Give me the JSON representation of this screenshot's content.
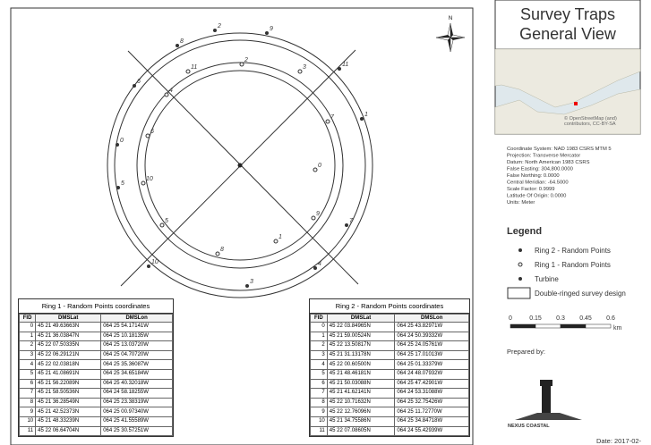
{
  "header": {
    "title_line1": "Survey Traps",
    "title_line2": "General View"
  },
  "inset": {
    "attribution": "© OpenStreetMap (and) contributors, CC-BY-SA"
  },
  "coordinate_info": [
    "Coordinate System: NAD 1983 CSRS MTM 5",
    "Projection: Transverse Mercator",
    "Datum: North American 1983 CSRS",
    "False Easting: 304,800.0000",
    "False Northing: 0.0000",
    "Central Meridian: -64.5000",
    "Scale Factor: 0.9999",
    "Latitude Of Origin: 0.0000",
    "Units: Meter"
  ],
  "legend": {
    "title": "Legend",
    "items": [
      "Ring 2 - Random Points",
      "Ring 1 - Random Points",
      "Turbine",
      "Double-ringed survey design"
    ]
  },
  "scale_bar": {
    "labels": [
      "0",
      "0.15",
      "0.3",
      "0.45",
      "0.6"
    ],
    "unit": "km"
  },
  "north": "N",
  "prepared_by": "Prepared by:",
  "logo": "NEXUS COASTAL",
  "date": "Date: 2017-02-",
  "map": {
    "ring1_labels": [
      "0",
      "1",
      "2",
      "3",
      "4",
      "5",
      "6",
      "7",
      "8",
      "9",
      "10",
      "11"
    ],
    "ring2_labels": [
      "0",
      "1",
      "2",
      "3",
      "4",
      "5",
      "6",
      "7",
      "8",
      "9",
      "10",
      "11"
    ]
  },
  "tables": [
    {
      "title": "Ring 1 - Random Points coordinates",
      "header": [
        "FID",
        "DMSLat",
        "DMSLon"
      ],
      "rows": [
        [
          "0",
          "45 21 49.63663N",
          "064 25 54.17141W"
        ],
        [
          "1",
          "45 21 36.03847N",
          "064 25 10.18135W"
        ],
        [
          "2",
          "45 22 07.50335N",
          "064 25 13.03720W"
        ],
        [
          "3",
          "45 22 06.29121N",
          "064 25 04.70720W"
        ],
        [
          "4",
          "45 22 02.03818N",
          "064 25 35.36087W"
        ],
        [
          "5",
          "45 21 41.08691N",
          "064 25 34.65184W"
        ],
        [
          "6",
          "45 21 56.22089N",
          "064 25 40.32018W"
        ],
        [
          "7",
          "45 21 58.50536N",
          "064 24 58.18255W"
        ],
        [
          "8",
          "45 21 36.28549N",
          "064 25 23.38319W"
        ],
        [
          "9",
          "45 21 42.52373N",
          "064 25 00.97340W"
        ],
        [
          "10",
          "45 21 48.33239N",
          "064 25 41.55589W"
        ],
        [
          "11",
          "45 22 06.64704N",
          "064 25 30.57251W"
        ]
      ]
    },
    {
      "title": "Ring 2 - Random Points coordinates",
      "header": [
        "FID",
        "DMSLat",
        "DMSLon"
      ],
      "rows": [
        [
          "0",
          "45 22 03.84965N",
          "064 25 43.82971W"
        ],
        [
          "1",
          "45 21 59.00524N",
          "064 24 50.39332W"
        ],
        [
          "2",
          "45 22 13.50817N",
          "064 25 24.05761W"
        ],
        [
          "3",
          "45 21 31.13178N",
          "064 25 17.01013W"
        ],
        [
          "4",
          "45 22 00.60500N",
          "064 25 01.33379W"
        ],
        [
          "5",
          "45 21 48.46181N",
          "064 24 48.07932W"
        ],
        [
          "6",
          "45 21 50.03088N",
          "064 25 47.42901W"
        ],
        [
          "7",
          "45 21 41.62141N",
          "064 24 53.31088W"
        ],
        [
          "8",
          "45 22 10.71632N",
          "064 25 32.75426W"
        ],
        [
          "9",
          "45 22 12.76096N",
          "064 25 11.72770W"
        ],
        [
          "10",
          "45 21 34.75586N",
          "064 25 34.84718W"
        ],
        [
          "11",
          "45 22 07.08605N",
          "064 24 55.42939W"
        ]
      ]
    }
  ]
}
